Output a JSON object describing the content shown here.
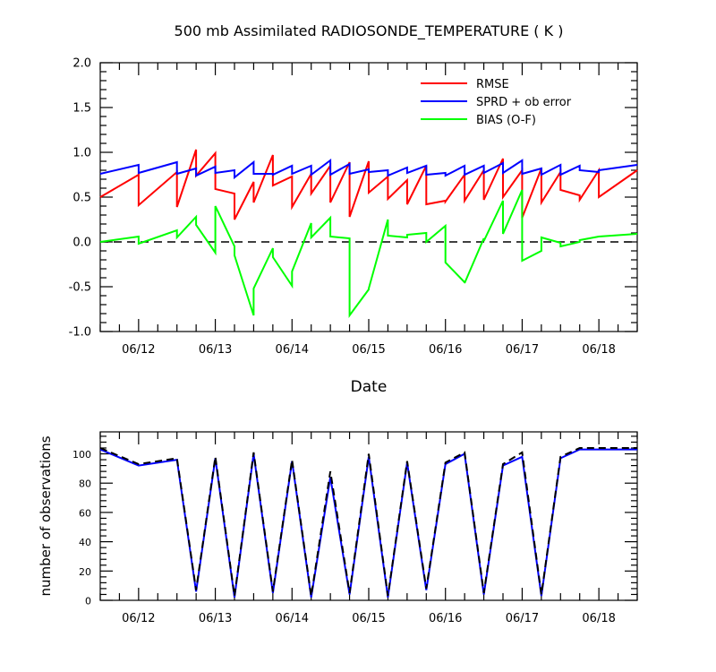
{
  "chart_data": [
    {
      "type": "line",
      "title": "500 mb Assimilated RADIOSONDE_TEMPERATURE ( K )",
      "xlabel": "Date",
      "ylabel": "",
      "xlim": [
        0,
        7.0
      ],
      "ylim": [
        -1.0,
        2.0
      ],
      "xtick_positions": [
        0.5,
        1.5,
        2.5,
        3.5,
        4.5,
        5.5,
        6.5
      ],
      "xtick_labels": [
        "06/12",
        "06/13",
        "06/14",
        "06/15",
        "06/16",
        "06/17",
        "06/18"
      ],
      "ytick_values": [
        -1.0,
        -0.5,
        0.0,
        0.5,
        1.0,
        1.5,
        2.0
      ],
      "ytick_labels": [
        "-1.0",
        "-0.5",
        "0.0",
        "0.5",
        "1.0",
        "1.5",
        "2.0"
      ],
      "reference_line": {
        "y": 0.0,
        "style": "dashed",
        "color": "#000000"
      },
      "legend": {
        "placement": "top-right"
      },
      "series": [
        {
          "name": "RMSE",
          "color": "#ff0000",
          "x": [
            0.0,
            0.5,
            0.5,
            1.0,
            1.0,
            1.25,
            1.25,
            1.5,
            1.5,
            1.75,
            1.75,
            2.0,
            2.0,
            2.25,
            2.25,
            2.5,
            2.5,
            2.75,
            2.75,
            3.0,
            3.0,
            3.25,
            3.25,
            3.5,
            3.5,
            3.75,
            3.75,
            4.0,
            4.0,
            4.25,
            4.25,
            4.5,
            4.5,
            4.75,
            4.75,
            5.0,
            5.0,
            5.25,
            5.25,
            5.5,
            5.5,
            5.75,
            5.75,
            6.0,
            6.0,
            6.25,
            6.25,
            6.5,
            6.5,
            7.0
          ],
          "y": [
            0.5,
            0.75,
            0.41,
            0.78,
            0.39,
            1.03,
            0.74,
            0.99,
            0.59,
            0.54,
            0.25,
            0.67,
            0.44,
            0.97,
            0.63,
            0.73,
            0.39,
            0.76,
            0.54,
            0.85,
            0.44,
            0.89,
            0.28,
            0.9,
            0.55,
            0.73,
            0.48,
            0.69,
            0.42,
            0.85,
            0.42,
            0.46,
            0.45,
            0.75,
            0.46,
            0.8,
            0.47,
            0.93,
            0.5,
            0.8,
            0.27,
            0.82,
            0.44,
            0.78,
            0.58,
            0.52,
            0.47,
            0.8,
            0.5,
            0.8
          ]
        },
        {
          "name": "SPRD + ob error",
          "color": "#0000ff",
          "x": [
            0.0,
            0.5,
            0.5,
            1.0,
            1.0,
            1.25,
            1.25,
            1.5,
            1.5,
            1.75,
            1.75,
            2.0,
            2.0,
            2.25,
            2.25,
            2.5,
            2.5,
            2.75,
            2.75,
            3.0,
            3.0,
            3.25,
            3.25,
            3.5,
            3.5,
            3.75,
            3.75,
            4.0,
            4.0,
            4.25,
            4.25,
            4.5,
            4.5,
            4.75,
            4.75,
            5.0,
            5.0,
            5.25,
            5.25,
            5.5,
            5.5,
            5.75,
            5.75,
            6.0,
            6.0,
            6.25,
            6.25,
            6.5,
            6.5,
            7.0
          ],
          "y": [
            0.76,
            0.86,
            0.77,
            0.89,
            0.76,
            0.82,
            0.74,
            0.84,
            0.77,
            0.8,
            0.72,
            0.89,
            0.76,
            0.76,
            0.75,
            0.85,
            0.76,
            0.85,
            0.75,
            0.91,
            0.75,
            0.87,
            0.76,
            0.81,
            0.78,
            0.8,
            0.74,
            0.83,
            0.77,
            0.85,
            0.75,
            0.77,
            0.74,
            0.85,
            0.75,
            0.85,
            0.77,
            0.88,
            0.77,
            0.91,
            0.76,
            0.82,
            0.75,
            0.86,
            0.75,
            0.85,
            0.8,
            0.78,
            0.8,
            0.86
          ]
        },
        {
          "name": "BIAS (O-F)",
          "color": "#00ff00",
          "x": [
            0.0,
            0.5,
            0.5,
            1.0,
            1.0,
            1.25,
            1.25,
            1.5,
            1.5,
            1.75,
            1.75,
            2.0,
            2.0,
            2.25,
            2.25,
            2.5,
            2.5,
            2.75,
            2.75,
            3.0,
            3.0,
            3.25,
            3.25,
            3.5,
            3.5,
            3.75,
            3.75,
            4.0,
            4.0,
            4.25,
            4.25,
            4.5,
            4.5,
            4.75,
            4.75,
            5.0,
            5.0,
            5.25,
            5.25,
            5.5,
            5.5,
            5.75,
            5.75,
            6.0,
            6.0,
            6.25,
            6.25,
            6.5,
            6.5,
            7.0
          ],
          "y": [
            0.0,
            0.06,
            -0.02,
            0.13,
            0.05,
            0.28,
            0.19,
            -0.12,
            0.4,
            -0.05,
            -0.15,
            -0.82,
            -0.52,
            -0.07,
            -0.17,
            -0.49,
            -0.33,
            0.21,
            0.05,
            0.27,
            0.06,
            0.04,
            -0.82,
            -0.53,
            -0.52,
            0.25,
            0.07,
            0.05,
            0.08,
            0.1,
            0.0,
            0.18,
            -0.23,
            -0.45,
            -0.46,
            0.04,
            0.01,
            0.46,
            0.09,
            0.58,
            -0.21,
            -0.1,
            0.05,
            -0.01,
            -0.05,
            0.0,
            0.02,
            0.06,
            0.06,
            0.09
          ]
        }
      ]
    },
    {
      "type": "line",
      "title": "",
      "xlabel": "",
      "ylabel": "number of observations",
      "xlim": [
        0,
        7.0
      ],
      "ylim": [
        0,
        115
      ],
      "xtick_positions": [
        0.5,
        1.5,
        2.5,
        3.5,
        4.5,
        5.5,
        6.5
      ],
      "xtick_labels": [
        "06/12",
        "06/13",
        "06/14",
        "06/15",
        "06/16",
        "06/17",
        "06/18"
      ],
      "ytick_values": [
        0,
        20,
        40,
        60,
        80,
        100
      ],
      "ytick_labels": [
        "0",
        "20",
        "40",
        "60",
        "80",
        "100"
      ],
      "series": [
        {
          "color": "#0000ff",
          "style": "solid",
          "x": [
            0.0,
            0.5,
            1.0,
            1.25,
            1.5,
            1.75,
            2.0,
            2.25,
            2.5,
            2.75,
            3.0,
            3.25,
            3.5,
            3.75,
            4.0,
            4.25,
            4.5,
            4.75,
            5.0,
            5.25,
            5.5,
            5.75,
            6.0,
            6.25,
            6.5,
            7.0
          ],
          "y": [
            103,
            92,
            96,
            6,
            97,
            2,
            100,
            5,
            95,
            2,
            84,
            4,
            98,
            2,
            94,
            7,
            93,
            100,
            4,
            92,
            98,
            3,
            97,
            103,
            103,
            103
          ]
        },
        {
          "color": "#000000",
          "style": "dashed",
          "x": [
            0.0,
            0.5,
            1.0,
            1.25,
            1.5,
            1.75,
            2.0,
            2.25,
            2.5,
            2.75,
            3.0,
            3.25,
            3.5,
            3.75,
            4.0,
            4.25,
            4.5,
            4.75,
            5.0,
            5.25,
            5.5,
            5.75,
            6.0,
            6.25,
            6.5,
            7.0
          ],
          "y": [
            104,
            93,
            97,
            7,
            98,
            3,
            101,
            6,
            96,
            3,
            88,
            5,
            100,
            3,
            95,
            8,
            94,
            101,
            5,
            93,
            101,
            4,
            98,
            104,
            104,
            104
          ]
        }
      ]
    }
  ]
}
